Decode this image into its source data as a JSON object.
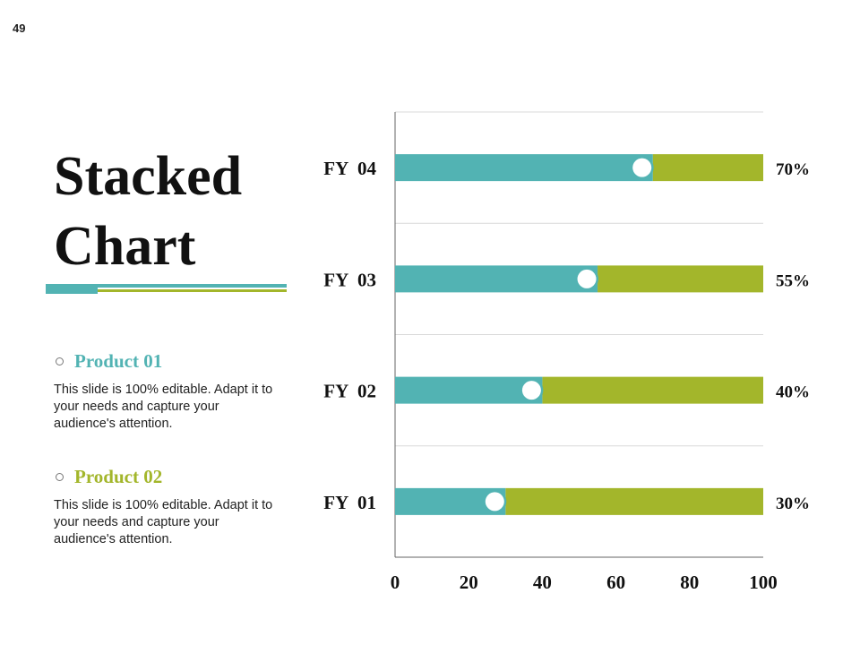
{
  "page_number": "49",
  "title": {
    "line1": "Stacked",
    "line2": "Chart"
  },
  "colors": {
    "teal": "#52b3b3",
    "green": "#a3b62b",
    "text": "#111111",
    "grid": "#d9d9d9"
  },
  "legend": [
    {
      "label": "Product 01",
      "color": "#52b3b3",
      "description": "This slide is 100% editable. Adapt it to your needs and capture your audience's attention."
    },
    {
      "label": "Product 02",
      "color": "#a3b62b",
      "description": "This slide is 100% editable. Adapt it to your needs and capture your audience's attention."
    }
  ],
  "chart_data": {
    "type": "bar",
    "orientation": "horizontal",
    "stacked": true,
    "categories": [
      "FY  04",
      "FY  03",
      "FY  02",
      "FY  01"
    ],
    "series": [
      {
        "name": "Product 01",
        "values": [
          70,
          55,
          40,
          30
        ]
      },
      {
        "name": "Product 02",
        "values": [
          30,
          45,
          60,
          70
        ]
      }
    ],
    "data_labels": [
      "70%",
      "55%",
      "40%",
      "30%"
    ],
    "xlim": [
      0,
      100
    ],
    "x_ticks": [
      "0",
      "20",
      "40",
      "60",
      "80",
      "100"
    ],
    "grid": true
  }
}
